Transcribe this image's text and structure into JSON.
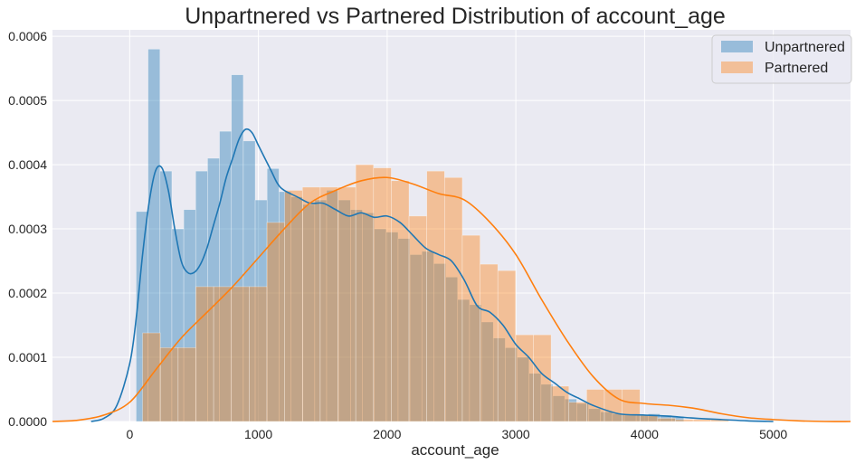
{
  "chart_data": {
    "type": "histogram",
    "title": "Unpartnered vs Partnered Distribution of account_age",
    "xlabel": "account_age",
    "ylabel": "",
    "xlim": [
      -600,
      5600
    ],
    "ylim": [
      0,
      0.00061
    ],
    "xticks": [
      0,
      1000,
      2000,
      3000,
      4000,
      5000
    ],
    "yticks": [
      0,
      0.0001,
      0.0002,
      0.0003,
      0.0004,
      0.0005,
      0.0006
    ],
    "ytick_labels": [
      "0.0000",
      "0.0001",
      "0.0002",
      "0.0003",
      "0.0004",
      "0.0005",
      "0.0006"
    ],
    "grid": true,
    "legend_position": "top-right",
    "series": [
      {
        "name": "Unpartnered",
        "color": "#1f77b4",
        "bin_start": 50,
        "bin_width": 92.5,
        "density": [
          0.000327,
          0.00058,
          0.00039,
          0.0003,
          0.00033,
          0.00039,
          0.00041,
          0.000452,
          0.00054,
          0.000437,
          0.000345,
          0.000394,
          0.000358,
          0.00035,
          0.000338,
          0.000345,
          0.00036,
          0.000345,
          0.00033,
          0.000325,
          0.0003,
          0.000295,
          0.000285,
          0.00026,
          0.000265,
          0.000246,
          0.000225,
          0.00019,
          0.000182,
          0.000155,
          0.00013,
          0.000115,
          0.0001,
          7.5e-05,
          5.8e-05,
          4e-05,
          3.5e-05,
          2.8e-05,
          2e-05,
          1.5e-05,
          1.2e-05,
          1e-05,
          1e-05,
          1.2e-05,
          1e-05,
          8e-06
        ],
        "kde_x": [
          -300,
          -200,
          -100,
          0,
          50,
          100,
          150,
          200,
          250,
          300,
          350,
          400,
          450,
          500,
          550,
          600,
          650,
          700,
          750,
          800,
          850,
          900,
          950,
          1000,
          1050,
          1100,
          1150,
          1200,
          1300,
          1400,
          1500,
          1600,
          1700,
          1800,
          1900,
          2000,
          2100,
          2200,
          2300,
          2400,
          2500,
          2600,
          2700,
          2800,
          2900,
          3000,
          3100,
          3200,
          3300,
          3400,
          3500,
          3600,
          3800,
          4000,
          4200,
          4400,
          4600,
          4800,
          5000
        ],
        "kde_y": [
          0.0,
          5e-06,
          2.5e-05,
          9e-05,
          0.00016,
          0.00026,
          0.00034,
          0.00039,
          0.000395,
          0.00036,
          0.0003,
          0.00025,
          0.000232,
          0.000232,
          0.000245,
          0.00027,
          0.000305,
          0.00034,
          0.00038,
          0.00041,
          0.00044,
          0.000455,
          0.00045,
          0.00043,
          0.00041,
          0.00039,
          0.00037,
          0.00036,
          0.00035,
          0.00034,
          0.00034,
          0.00033,
          0.00032,
          0.000325,
          0.000318,
          0.00032,
          0.00031,
          0.00029,
          0.00027,
          0.00026,
          0.00025,
          0.00022,
          0.00018,
          0.00017,
          0.00015,
          0.00012,
          0.0001,
          7.5e-05,
          6e-05,
          4.5e-05,
          3.5e-05,
          2.5e-05,
          1.2e-05,
          1e-05,
          8e-06,
          5e-06,
          3e-06,
          1e-06,
          0.0
        ]
      },
      {
        "name": "Partnered",
        "color": "#ff7f0e",
        "bin_start": 100,
        "bin_width": 138,
        "density": [
          0.000138,
          0.000115,
          0.000115,
          0.00021,
          0.00021,
          0.00021,
          0.00021,
          0.00031,
          0.00036,
          0.000365,
          0.000365,
          0.000365,
          0.0004,
          0.000395,
          0.000375,
          0.00032,
          0.00039,
          0.00038,
          0.00029,
          0.000245,
          0.000235,
          0.000135,
          0.000135,
          5.5e-05,
          3e-05,
          5e-05,
          5e-05,
          5e-05,
          1e-05,
          5e-06,
          3e-06,
          3e-06,
          3e-06
        ],
        "kde_x": [
          -600,
          -400,
          -200,
          0,
          200,
          400,
          600,
          800,
          1000,
          1200,
          1400,
          1600,
          1800,
          2000,
          2200,
          2400,
          2600,
          2800,
          3000,
          3200,
          3400,
          3600,
          3800,
          4000,
          4200,
          4400,
          4600,
          4800,
          5000,
          5200,
          5400,
          5600
        ],
        "kde_y": [
          0.0,
          2e-06,
          1e-05,
          3e-05,
          8e-05,
          0.00013,
          0.00017,
          0.00021,
          0.000255,
          0.0003,
          0.00034,
          0.00036,
          0.000375,
          0.00038,
          0.00037,
          0.000355,
          0.000345,
          0.00031,
          0.00026,
          0.00019,
          0.000125,
          7e-05,
          3.5e-05,
          2.8e-05,
          2.5e-05,
          2e-05,
          1.2e-05,
          6e-06,
          3e-06,
          1e-06,
          0.0,
          0.0
        ]
      }
    ]
  }
}
